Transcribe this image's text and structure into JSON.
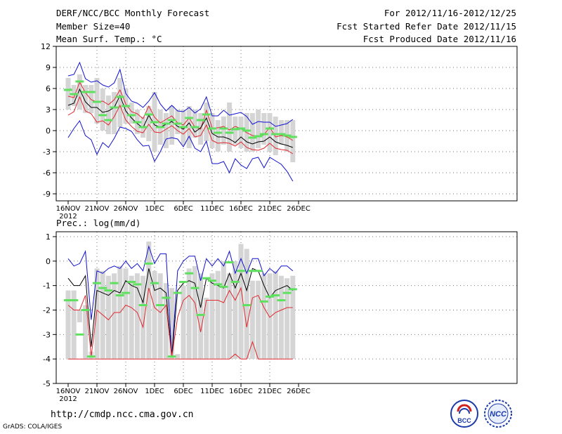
{
  "header": {
    "title": "DERF/NCC/BCC Monthly Forecast",
    "member_size": "Member Size=40",
    "variable": "Mean Surf. Temp.: °C",
    "period": "For 2012/11/16-2012/12/25",
    "started": "Fcst Started Refer Date 2012/11/15",
    "produced": "Fcst Produced Date 2012/11/16"
  },
  "footer": {
    "url": "http://cmdp.ncc.cma.gov.cn",
    "grads": "GrADS: COLA/IGES"
  },
  "logos": {
    "left": "BCC",
    "right": "NCC"
  },
  "colors": {
    "mean": "#000000",
    "ci": "#e0282f",
    "range": "#1010d0",
    "bar": "#d5d5d5",
    "obs": "#5fe05f"
  },
  "chart_data": [
    {
      "type": "line",
      "title": "Mean Surf. Temp.: °C",
      "x_ticks": [
        "16NOV",
        "21NOV",
        "26NOV",
        "1DEC",
        "6DEC",
        "11DEC",
        "16DEC",
        "21DEC",
        "26DEC"
      ],
      "x_year": "2012",
      "ylim": [
        -10,
        12
      ],
      "yticks": [
        12,
        9,
        6,
        3,
        0,
        -3,
        -6,
        -9
      ],
      "grid": true,
      "box_low": [
        3.0,
        3.5,
        3.0,
        2.5,
        2.5,
        1.0,
        0.0,
        -0.5,
        -0.5,
        0.5,
        1.0,
        1.0,
        -0.5,
        -1.0,
        -1.5,
        -3.0,
        -2.0,
        -2.5,
        -2.0,
        -0.5,
        -2.0,
        -2.5,
        -1.0,
        -2.0,
        -1.5,
        -2.5,
        -3.0,
        -2.0,
        -3.0,
        -2.0,
        -2.5,
        -3.0,
        -3.0,
        -2.5,
        -2.0,
        -3.0,
        -3.5,
        -2.0,
        -3.0,
        -4.5
      ],
      "box_high": [
        7.5,
        6.5,
        8.0,
        6.5,
        6.5,
        7.5,
        6.0,
        5.0,
        5.5,
        7.5,
        6.0,
        4.0,
        3.0,
        2.0,
        3.5,
        5.5,
        3.0,
        2.5,
        3.5,
        3.0,
        3.0,
        3.5,
        3.0,
        2.5,
        4.0,
        2.5,
        1.5,
        2.0,
        4.0,
        2.0,
        2.0,
        2.5,
        2.5,
        3.0,
        2.5,
        2.5,
        2.0,
        1.5,
        1.5,
        1.5
      ],
      "obs": [
        5.8,
        5.2,
        7.0,
        5.5,
        5.5,
        4.1,
        2.2,
        1.5,
        3.3,
        4.8,
        3.5,
        2.2,
        1.2,
        0.5,
        2.3,
        1.2,
        0.5,
        1.0,
        1.5,
        1.0,
        0.5,
        1.8,
        0.5,
        1.5,
        2.3,
        0.3,
        -0.3,
        0.3,
        -0.3,
        0.2,
        0.3,
        0.0,
        -1.0,
        -0.8,
        -0.5,
        0.3,
        -0.5,
        -0.5,
        -0.7,
        -0.9
      ],
      "series": [
        {
          "name": "range_max",
          "color": "#1010d0",
          "values": [
            7.8,
            8.0,
            9.7,
            7.4,
            6.9,
            7.1,
            6.5,
            6.2,
            6.8,
            8.7,
            5.3,
            4.2,
            3.9,
            3.3,
            4.2,
            5.4,
            3.8,
            2.8,
            3.6,
            2.8,
            2.7,
            3.3,
            2.5,
            3.1,
            4.8,
            2.1,
            2.1,
            2.9,
            2.2,
            2.4,
            2.6,
            2.0,
            0.9,
            1.3,
            1.2,
            1.2,
            0.6,
            0.8,
            1.0,
            1.6
          ]
        },
        {
          "name": "ci_upper",
          "color": "#e0282f",
          "values": [
            4.9,
            4.7,
            6.9,
            5.4,
            4.4,
            4.1,
            4.2,
            3.7,
            4.4,
            5.8,
            3.8,
            2.7,
            2.4,
            1.7,
            3.5,
            1.9,
            1.1,
            1.6,
            2.1,
            1.1,
            0.8,
            1.8,
            0.5,
            0.2,
            2.9,
            0.4,
            0.4,
            0.6,
            0.1,
            0.6,
            0.3,
            -0.3,
            -0.7,
            -0.8,
            -0.6,
            0.5,
            -0.9,
            -0.7,
            -0.9,
            -1.4
          ]
        },
        {
          "name": "mean",
          "color": "#000000",
          "values": [
            3.6,
            3.9,
            5.9,
            4.1,
            3.3,
            3.3,
            2.6,
            2.8,
            3.3,
            5.0,
            2.8,
            1.8,
            1.0,
            0.4,
            2.2,
            0.8,
            0.5,
            0.9,
            1.3,
            0.6,
            0.2,
            1.1,
            -0.2,
            0.4,
            1.8,
            -0.4,
            -0.9,
            -0.9,
            -1.2,
            -1.7,
            -0.9,
            -1.6,
            -1.9,
            -1.6,
            -1.5,
            -0.9,
            -1.6,
            -1.9,
            -2.1,
            -2.4
          ]
        },
        {
          "name": "ci_lower",
          "color": "#e0282f",
          "values": [
            2.2,
            2.7,
            4.8,
            2.8,
            2.4,
            1.2,
            1.4,
            0.8,
            2.0,
            3.6,
            1.5,
            0.6,
            -0.1,
            -0.3,
            0.9,
            -0.2,
            -0.3,
            0.2,
            0.7,
            0.0,
            -0.5,
            0.3,
            -0.9,
            -0.7,
            0.8,
            -1.4,
            -1.8,
            -1.7,
            -1.8,
            -2.2,
            -1.6,
            -2.4,
            -2.7,
            -2.8,
            -2.5,
            -1.8,
            -2.5,
            -2.7,
            -2.8,
            -3.3
          ]
        },
        {
          "name": "range_min",
          "color": "#1010d0",
          "values": [
            -1.0,
            0.3,
            1.4,
            -0.7,
            -1.3,
            -3.4,
            -1.7,
            -2.4,
            -1.1,
            0.5,
            0.3,
            -0.1,
            -1.3,
            -2.2,
            -2.1,
            -4.4,
            -3.0,
            -1.2,
            -1.0,
            -1.2,
            -2.3,
            -0.8,
            -2.5,
            -3.0,
            -1.5,
            -4.7,
            -4.7,
            -4.4,
            -6.0,
            -4.0,
            -4.9,
            -5.4,
            -4.0,
            -3.8,
            -5.3,
            -3.8,
            -4.3,
            -4.8,
            -5.8,
            -7.2
          ]
        }
      ]
    },
    {
      "type": "line",
      "title": "Prec.: log(mm/d)",
      "x_ticks": [
        "16NOV",
        "21NOV",
        "26NOV",
        "1DEC",
        "6DEC",
        "11DEC",
        "16DEC",
        "21DEC",
        "26DEC"
      ],
      "x_year": "2012",
      "ylim": [
        -5,
        1.2
      ],
      "yticks": [
        1,
        0,
        -1,
        -2,
        -3,
        -4,
        -5
      ],
      "grid": true,
      "box_low": [
        -4,
        -4,
        -2.5,
        -4,
        -4,
        -4,
        -4,
        -4,
        -4,
        -4,
        -4,
        -4,
        -4,
        -4,
        -4,
        -4,
        -4,
        -4,
        -4,
        -4,
        -4,
        -4,
        -4,
        -4,
        -4,
        -4,
        -4,
        -4,
        -4,
        -4,
        -4,
        -4,
        -4,
        -4,
        -4,
        -4,
        -4,
        -4,
        -4,
        -4
      ],
      "box_high": [
        -1.2,
        -1.2,
        -2.0,
        -1.8,
        -3.7,
        -0.3,
        -0.4,
        -0.6,
        -0.5,
        -0.2,
        -0.3,
        -0.6,
        -0.5,
        -0.6,
        0.8,
        -0.4,
        -0.5,
        -0.9,
        -1.1,
        -3.8,
        -1.0,
        -0.3,
        -0.2,
        -0.5,
        -1.5,
        -0.5,
        -0.4,
        0.0,
        -0.5,
        0.0,
        0.7,
        0.5,
        -0.8,
        -0.8,
        -0.5,
        -0.5,
        -0.4,
        -0.6,
        -0.7,
        -0.6
      ],
      "obs": [
        -1.6,
        -1.6,
        -3.0,
        -2.0,
        -3.9,
        -0.9,
        -1.1,
        -1.2,
        -0.9,
        -1.4,
        -1.3,
        -0.85,
        -0.95,
        -1.8,
        -0.1,
        -0.9,
        -1.8,
        -1.5,
        -3.9,
        -1.3,
        -0.85,
        -0.5,
        -1.1,
        -2.2,
        -0.7,
        -0.8,
        -0.95,
        -1.05,
        -0.05,
        -0.85,
        -0.4,
        -1.8,
        -0.4,
        -0.4,
        -1.65,
        -1.45,
        -1.4,
        -1.6,
        -1.3,
        -1.15
      ],
      "series": [
        {
          "name": "range_max",
          "color": "#1010d0",
          "values": [
            0.1,
            -0.2,
            -0.1,
            0.4,
            -2.4,
            -0.4,
            -0.5,
            -0.3,
            -0.2,
            -0.3,
            0.0,
            -0.3,
            -0.1,
            -0.4,
            0.6,
            -0.1,
            0.3,
            0.3,
            -3.9,
            -0.4,
            0.0,
            0.2,
            0.2,
            -0.8,
            0.1,
            -0.2,
            0.1,
            -0.2,
            0.4,
            -0.5,
            0.1,
            -0.5,
            0.1,
            0.1,
            -0.6,
            -0.3,
            -0.5,
            -0.2,
            -0.2,
            -0.4
          ]
        },
        {
          "name": "mean",
          "color": "#000000",
          "values": [
            -0.7,
            -1.0,
            -1.0,
            -0.6,
            -3.5,
            -1.2,
            -1.3,
            -1.4,
            -1.2,
            -1.3,
            -0.8,
            -1.0,
            -1.1,
            -1.7,
            -0.3,
            -1.2,
            -1.1,
            -1.3,
            -3.9,
            -1.2,
            -0.9,
            -0.8,
            -0.9,
            -1.9,
            -0.7,
            -0.9,
            -1.0,
            -1.1,
            -0.5,
            -1.1,
            -0.5,
            -1.2,
            -0.3,
            -0.4,
            -1.0,
            -1.5,
            -1.2,
            -1.1,
            -1.0,
            -1.2
          ]
        },
        {
          "name": "ci_lower",
          "color": "#e0282f",
          "values": [
            -1.8,
            -2.0,
            -2.0,
            -1.4,
            -3.9,
            -2.0,
            -2.2,
            -2.4,
            -2.1,
            -2.1,
            -1.8,
            -1.9,
            -2.1,
            -2.7,
            -1.1,
            -1.9,
            -2.1,
            -1.8,
            -3.9,
            -2.3,
            -1.6,
            -1.4,
            -1.7,
            -2.9,
            -1.6,
            -1.6,
            -1.6,
            -1.7,
            -1.2,
            -1.6,
            -1.1,
            -2.7,
            -1.5,
            -1.4,
            -1.9,
            -2.3,
            -2.1,
            -2.0,
            -1.9,
            -1.9
          ]
        },
        {
          "name": "ci_lower_floor",
          "color": "#e0282f",
          "values": [
            -4,
            -4,
            -4,
            -4,
            -4,
            -4,
            -4,
            -4,
            -4,
            -4,
            -4,
            -4,
            -4,
            -4,
            -4,
            -4,
            -4,
            -4,
            -4,
            -4,
            -4,
            -4,
            -4,
            -4,
            -4,
            -4,
            -4,
            -4,
            -4,
            -3.8,
            -4,
            -4,
            -3.3,
            -4,
            -4,
            -4,
            -4,
            -4,
            -4,
            -4
          ]
        }
      ]
    }
  ]
}
